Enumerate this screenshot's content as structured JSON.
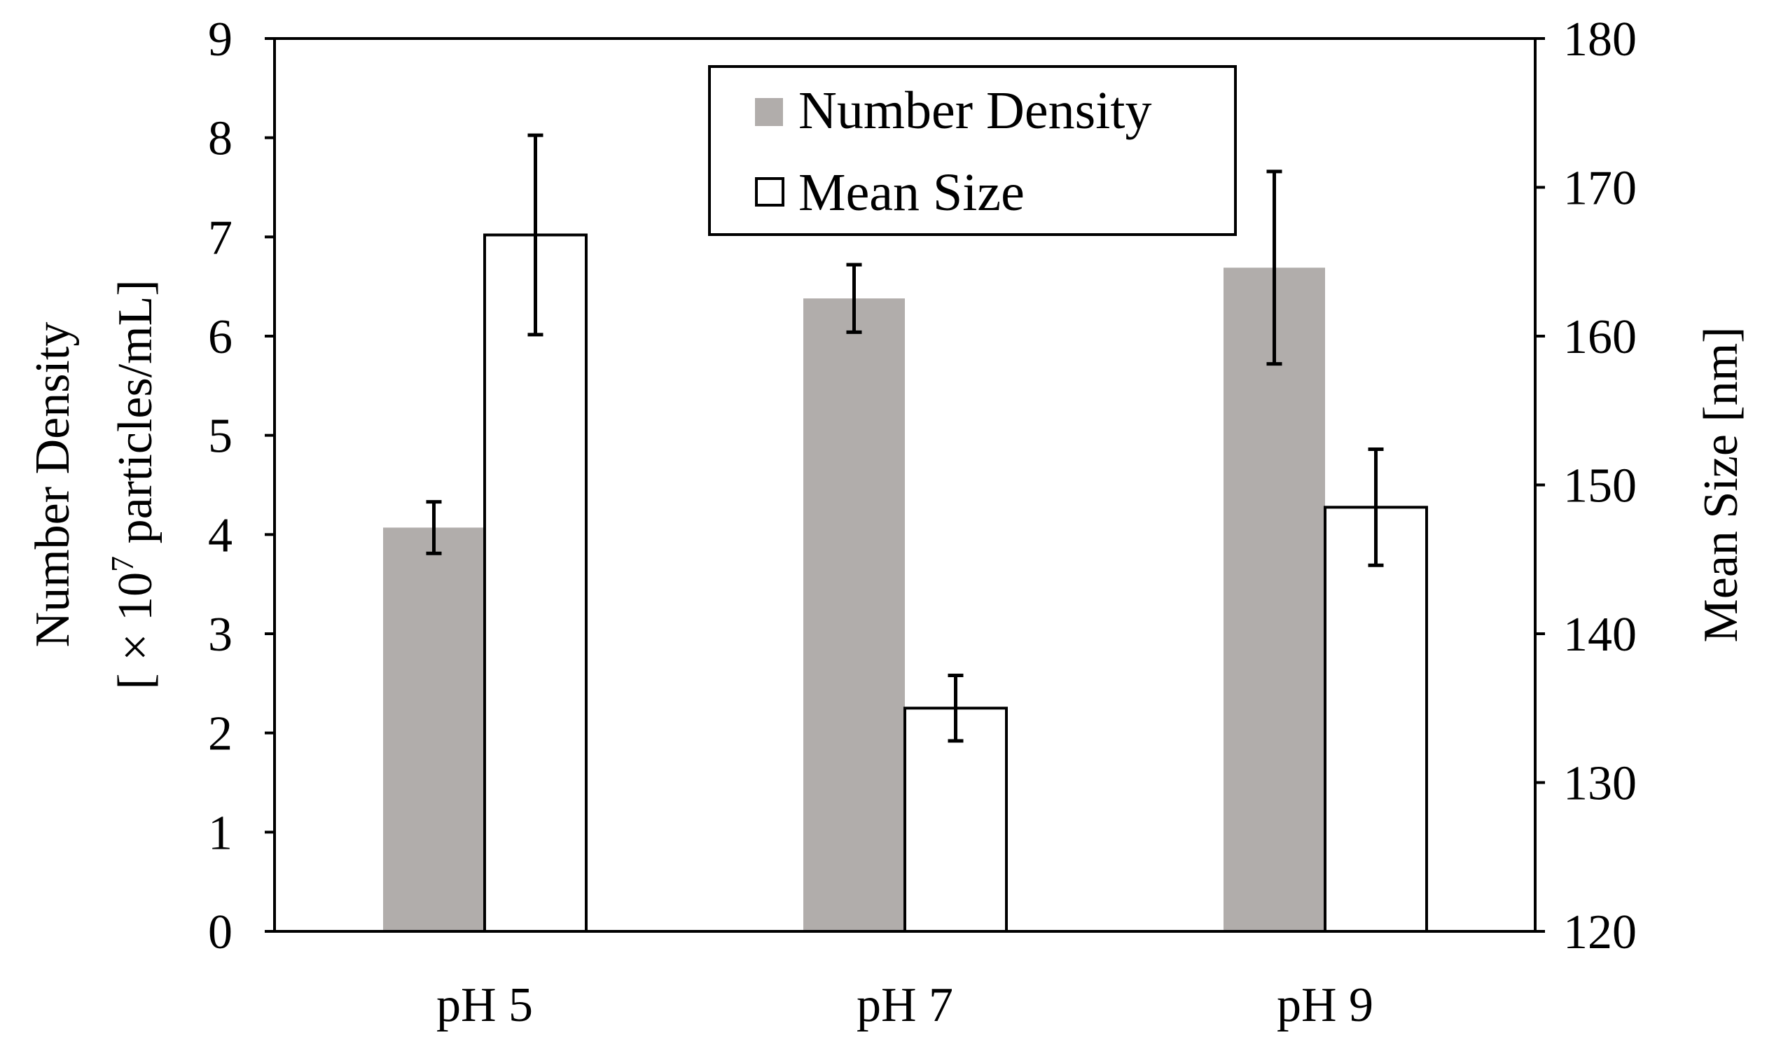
{
  "chart_data": {
    "type": "bar",
    "categories": [
      "pH 5",
      "pH 7",
      "pH 9"
    ],
    "series": [
      {
        "name": "Number Density",
        "axis": "left",
        "color": "#b1adab",
        "values": [
          4.07,
          6.38,
          6.69
        ],
        "errors": [
          0.26,
          0.34,
          0.97
        ]
      },
      {
        "name": "Mean Size",
        "axis": "right",
        "color": "#ffffff",
        "values": [
          166.8,
          135.0,
          148.5
        ],
        "errors": [
          6.7,
          2.2,
          3.9
        ]
      }
    ],
    "left_axis": {
      "label_line1": "Number Density",
      "label_line2_prefix": "[ × 10",
      "label_line2_sup": "7",
      "label_line2_suffix": " particles/mL]",
      "ylim": [
        0,
        9
      ],
      "ticks": [
        "0",
        "1",
        "2",
        "3",
        "4",
        "5",
        "6",
        "7",
        "8",
        "9"
      ]
    },
    "right_axis": {
      "label": "Mean Size [nm]",
      "ylim": [
        120,
        180
      ],
      "ticks": [
        "120",
        "130",
        "140",
        "150",
        "160",
        "170",
        "180"
      ]
    },
    "legend": {
      "position": "top-center",
      "entries": [
        "Number Density",
        "Mean Size"
      ]
    },
    "grid": false
  }
}
